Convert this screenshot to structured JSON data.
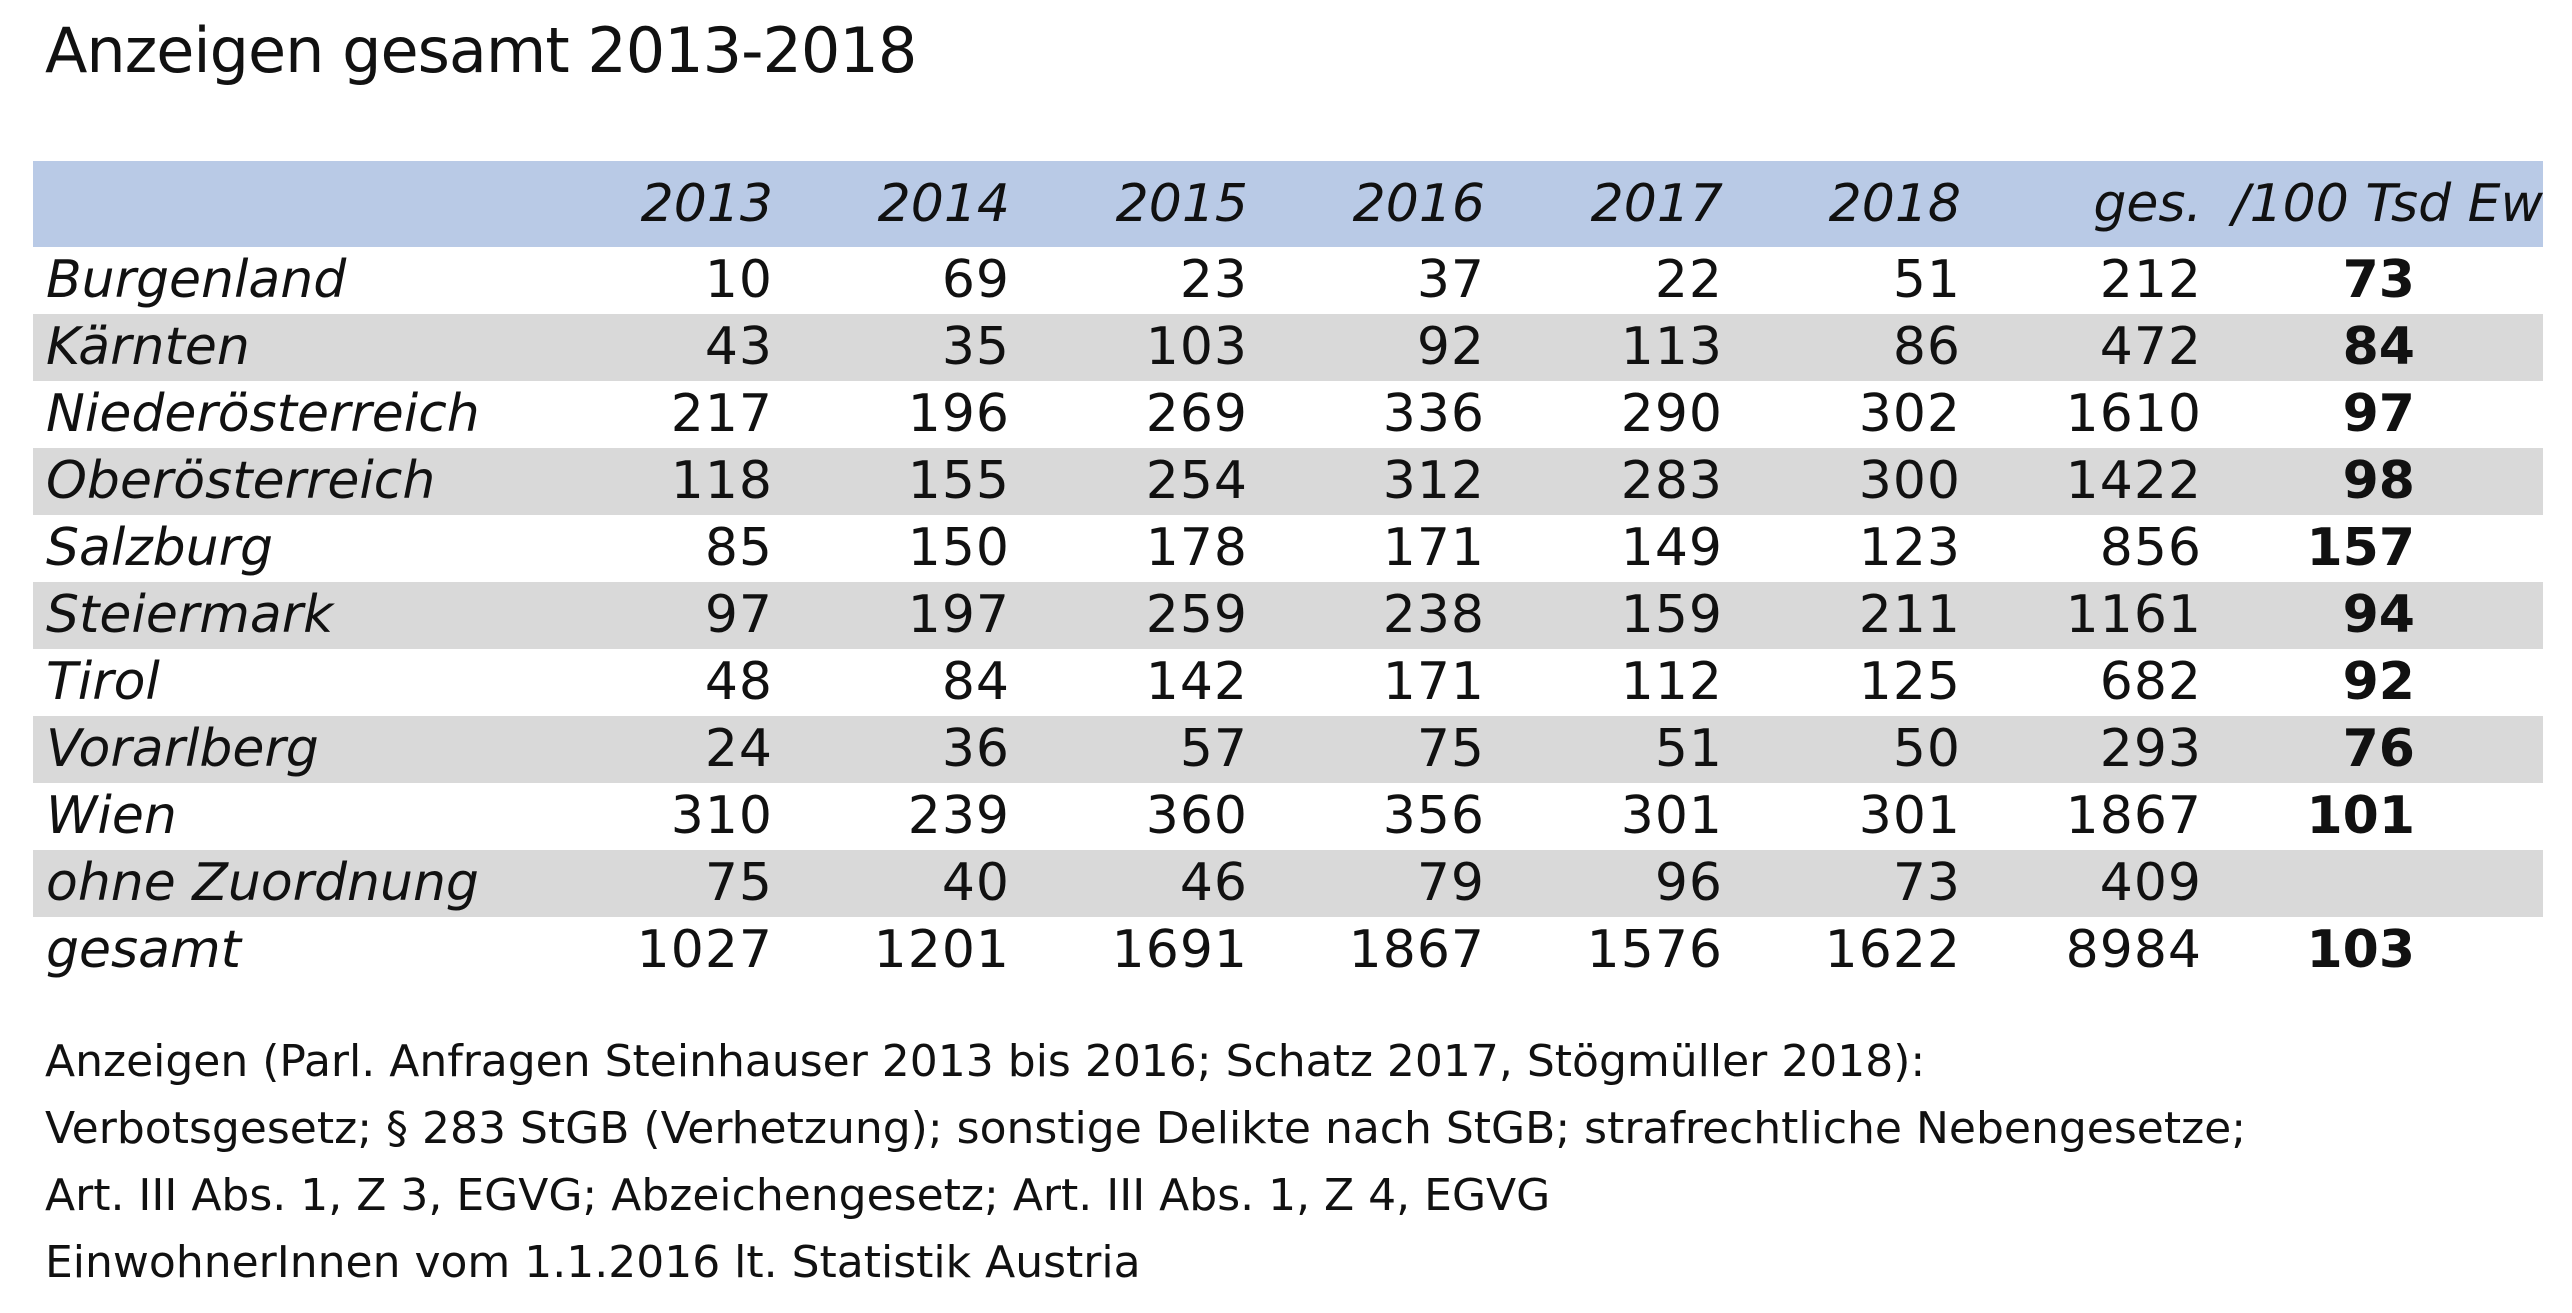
{
  "title": "Anzeigen gesamt 2013-2018",
  "table": {
    "columns": [
      "",
      "2013",
      "2014",
      "2015",
      "2016",
      "2017",
      "2018",
      "ges.",
      "/100 Tsd Ew"
    ],
    "rows": [
      {
        "region": "Burgenland",
        "values": [
          "10",
          "69",
          "23",
          "37",
          "22",
          "51",
          "212"
        ],
        "rate": "73"
      },
      {
        "region": "Kärnten",
        "values": [
          "43",
          "35",
          "103",
          "92",
          "113",
          "86",
          "472"
        ],
        "rate": "84"
      },
      {
        "region": "Niederösterreich",
        "values": [
          "217",
          "196",
          "269",
          "336",
          "290",
          "302",
          "1610"
        ],
        "rate": "97"
      },
      {
        "region": "Oberösterreich",
        "values": [
          "118",
          "155",
          "254",
          "312",
          "283",
          "300",
          "1422"
        ],
        "rate": "98"
      },
      {
        "region": "Salzburg",
        "values": [
          "85",
          "150",
          "178",
          "171",
          "149",
          "123",
          "856"
        ],
        "rate": "157"
      },
      {
        "region": "Steiermark",
        "values": [
          "97",
          "197",
          "259",
          "238",
          "159",
          "211",
          "1161"
        ],
        "rate": "94"
      },
      {
        "region": "Tirol",
        "values": [
          "48",
          "84",
          "142",
          "171",
          "112",
          "125",
          "682"
        ],
        "rate": "92"
      },
      {
        "region": "Vorarlberg",
        "values": [
          "24",
          "36",
          "57",
          "75",
          "51",
          "50",
          "293"
        ],
        "rate": "76"
      },
      {
        "region": "Wien",
        "values": [
          "310",
          "239",
          "360",
          "356",
          "301",
          "301",
          "1867"
        ],
        "rate": "101"
      },
      {
        "region": "ohne Zuordnung",
        "values": [
          "75",
          "40",
          "46",
          "79",
          "96",
          "73",
          "409"
        ],
        "rate": ""
      },
      {
        "region": "gesamt",
        "values": [
          "1027",
          "1201",
          "1691",
          "1867",
          "1576",
          "1622",
          "8984"
        ],
        "rate": "103"
      }
    ]
  },
  "footnotes": [
    "Anzeigen (Parl. Anfragen Steinhauser 2013 bis 2016; Schatz 2017, Stögmüller 2018):",
    "Verbotsgesetz; § 283 StGB (Verhetzung); sonstige Delikte nach StGB; strafrechtliche Nebengesetze;",
    "Art. III Abs. 1, Z 3, EGVG; Abzeichengesetz; Art. III Abs. 1, Z 4, EGVG",
    "EinwohnerInnen vom 1.1.2016 lt. Statistik Austria"
  ],
  "colors": {
    "header_background": "#b9cae6",
    "alternate_row_background": "#d9d9d9"
  }
}
